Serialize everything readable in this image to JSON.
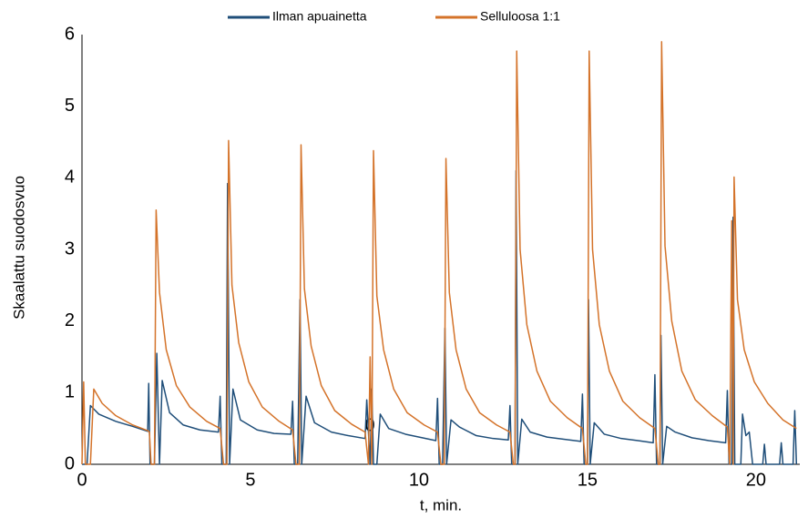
{
  "chart_data": {
    "type": "line",
    "xlabel": "t, min.",
    "ylabel": "Skaalattu suodosvuo",
    "annotation": "0",
    "xlim": [
      0,
      21.3
    ],
    "ylim": [
      0,
      6
    ],
    "xticks": [
      0,
      5,
      10,
      15,
      20
    ],
    "yticks": [
      0,
      1,
      2,
      3,
      4,
      5,
      6
    ],
    "grid": false,
    "legend": "top",
    "series": [
      {
        "name": "Ilman apuainetta",
        "color": "#1f4e79",
        "x": [
          0,
          0.15,
          0.25,
          0.5,
          1.0,
          1.5,
          1.95,
          1.98,
          2.02,
          2.15,
          2.22,
          2.3,
          2.38,
          2.6,
          3.0,
          3.5,
          4.05,
          4.1,
          4.15,
          4.28,
          4.32,
          4.38,
          4.48,
          4.7,
          5.2,
          5.7,
          6.2,
          6.25,
          6.3,
          6.4,
          6.47,
          6.52,
          6.65,
          6.9,
          7.4,
          7.9,
          8.4,
          8.45,
          8.55,
          8.6,
          8.65,
          8.75,
          8.85,
          9.1,
          9.6,
          10.1,
          10.5,
          10.55,
          10.6,
          10.7,
          10.77,
          10.82,
          10.95,
          11.2,
          11.7,
          12.2,
          12.65,
          12.7,
          12.75,
          12.85,
          12.88,
          12.93,
          13.05,
          13.3,
          13.8,
          14.3,
          14.8,
          14.85,
          14.9,
          15.0,
          15.03,
          15.08,
          15.2,
          15.5,
          16.0,
          16.5,
          16.95,
          17.0,
          17.05,
          17.15,
          17.18,
          17.23,
          17.35,
          17.6,
          18.1,
          18.6,
          19.1,
          19.15,
          19.2,
          19.28,
          19.32,
          19.37,
          19.55,
          19.6,
          19.7,
          19.8,
          19.9,
          20.2,
          20.25,
          20.3,
          20.7,
          20.75,
          20.8,
          21.1,
          21.15,
          21.2
        ],
        "values": [
          0,
          0,
          0.82,
          0.7,
          0.6,
          0.53,
          0.46,
          1.13,
          0,
          0,
          1.55,
          0,
          1.17,
          0.72,
          0.55,
          0.48,
          0.45,
          0.95,
          0,
          0,
          3.92,
          0,
          1.05,
          0.62,
          0.48,
          0.43,
          0.42,
          0.88,
          0,
          0,
          2.3,
          0,
          0.95,
          0.58,
          0.45,
          0.4,
          0.36,
          0.9,
          0,
          1.05,
          0,
          0,
          0.7,
          0.5,
          0.42,
          0.37,
          0.33,
          0.92,
          0,
          0,
          1.9,
          0,
          0.62,
          0.52,
          0.4,
          0.36,
          0.34,
          0.82,
          0,
          0,
          4.1,
          0,
          0.63,
          0.45,
          0.38,
          0.35,
          0.32,
          0.98,
          0,
          0,
          2.3,
          0,
          0.58,
          0.42,
          0.36,
          0.33,
          0.3,
          1.25,
          0,
          0,
          1.8,
          0,
          0.53,
          0.45,
          0.37,
          0.33,
          0.3,
          1.03,
          0,
          0,
          3.45,
          0,
          0,
          0.7,
          0.4,
          0.45,
          0,
          0,
          0.28,
          0,
          0,
          0.3,
          0,
          0,
          0.75,
          0
        ]
      },
      {
        "name": "Selluloosa 1:1",
        "color": "#d4732a",
        "x": [
          0,
          0.05,
          0.1,
          0.25,
          0.35,
          0.6,
          1.0,
          1.5,
          1.95,
          2.0,
          2.05,
          2.15,
          2.2,
          2.3,
          2.5,
          2.8,
          3.2,
          3.7,
          4.1,
          4.2,
          4.3,
          4.35,
          4.45,
          4.65,
          4.95,
          5.35,
          5.85,
          6.25,
          6.35,
          6.45,
          6.5,
          6.6,
          6.8,
          7.1,
          7.5,
          8.0,
          8.4,
          8.5,
          8.55,
          8.6,
          8.65,
          8.75,
          8.95,
          9.25,
          9.65,
          10.15,
          10.55,
          10.65,
          10.75,
          10.8,
          10.9,
          11.1,
          11.4,
          11.8,
          12.3,
          12.7,
          12.8,
          12.85,
          12.9,
          13.0,
          13.2,
          13.5,
          13.9,
          14.4,
          14.85,
          14.95,
          15.0,
          15.05,
          15.15,
          15.35,
          15.65,
          16.05,
          16.55,
          17.0,
          17.1,
          17.15,
          17.2,
          17.3,
          17.5,
          17.8,
          18.2,
          18.7,
          19.15,
          19.22,
          19.28,
          19.32,
          19.35,
          19.45,
          19.65,
          19.95,
          20.35,
          20.8,
          21.2
        ],
        "values": [
          0,
          1.15,
          0,
          0,
          1.05,
          0.85,
          0.68,
          0.55,
          0.47,
          0.45,
          0,
          0,
          3.55,
          2.4,
          1.6,
          1.1,
          0.8,
          0.6,
          0.5,
          0,
          0,
          4.52,
          2.5,
          1.7,
          1.15,
          0.8,
          0.6,
          0.48,
          0,
          0,
          4.46,
          2.45,
          1.65,
          1.1,
          0.75,
          0.56,
          0.45,
          0,
          1.5,
          0,
          4.38,
          2.35,
          1.6,
          1.05,
          0.72,
          0.55,
          0.45,
          0,
          0,
          4.27,
          2.4,
          1.6,
          1.05,
          0.72,
          0.55,
          0.45,
          0,
          0,
          5.77,
          3.0,
          1.95,
          1.3,
          0.88,
          0.65,
          0.5,
          0,
          0,
          5.77,
          3.0,
          1.95,
          1.3,
          0.88,
          0.65,
          0.5,
          0,
          0,
          5.9,
          3.05,
          2.0,
          1.3,
          0.9,
          0.68,
          0.52,
          0,
          3.4,
          0,
          4.01,
          2.3,
          1.6,
          1.15,
          0.85,
          0.62,
          0.5
        ]
      }
    ]
  }
}
